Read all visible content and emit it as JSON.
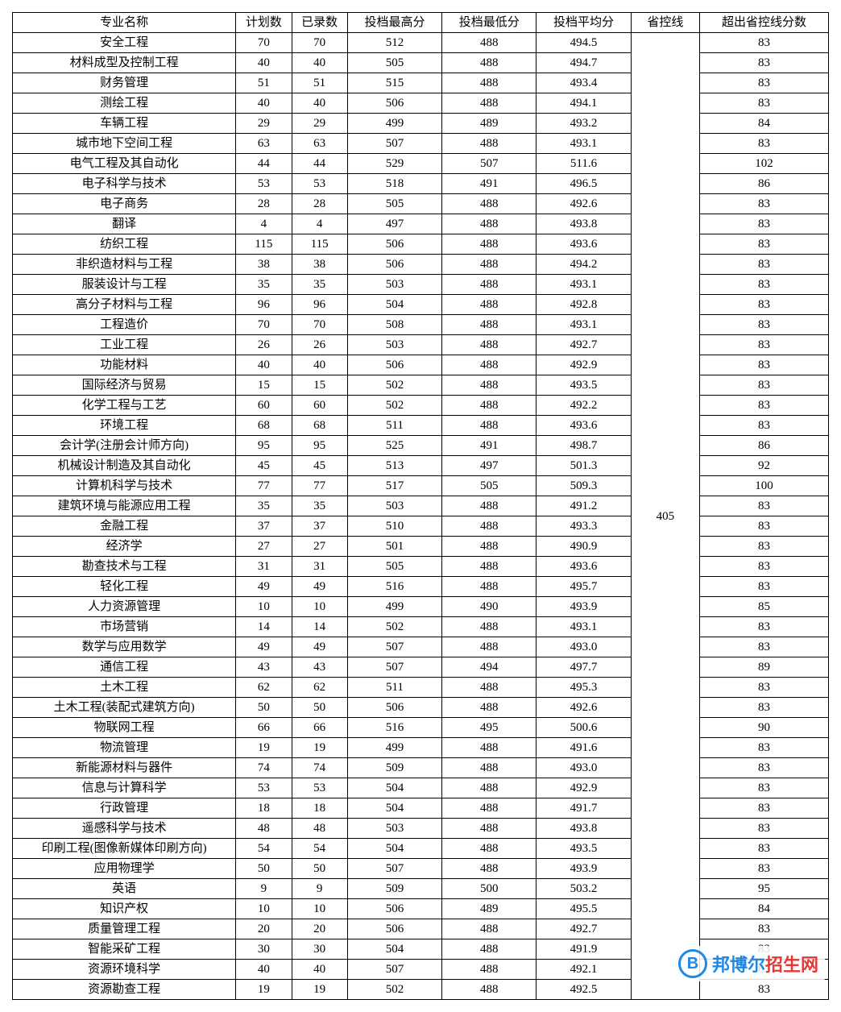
{
  "table": {
    "headers": {
      "name": "专业名称",
      "plan": "计划数",
      "admitted": "已录数",
      "max": "投档最高分",
      "min": "投档最低分",
      "avg": "投档平均分",
      "provline": "省控线",
      "exceed": "超出省控线分数"
    },
    "provline_value": "405",
    "rows": [
      {
        "name": "安全工程",
        "plan": "70",
        "admitted": "70",
        "max": "512",
        "min": "488",
        "avg": "494.5",
        "exceed": "83"
      },
      {
        "name": "材料成型及控制工程",
        "plan": "40",
        "admitted": "40",
        "max": "505",
        "min": "488",
        "avg": "494.7",
        "exceed": "83"
      },
      {
        "name": "财务管理",
        "plan": "51",
        "admitted": "51",
        "max": "515",
        "min": "488",
        "avg": "493.4",
        "exceed": "83"
      },
      {
        "name": "测绘工程",
        "plan": "40",
        "admitted": "40",
        "max": "506",
        "min": "488",
        "avg": "494.1",
        "exceed": "83"
      },
      {
        "name": "车辆工程",
        "plan": "29",
        "admitted": "29",
        "max": "499",
        "min": "489",
        "avg": "493.2",
        "exceed": "84"
      },
      {
        "name": "城市地下空间工程",
        "plan": "63",
        "admitted": "63",
        "max": "507",
        "min": "488",
        "avg": "493.1",
        "exceed": "83"
      },
      {
        "name": "电气工程及其自动化",
        "plan": "44",
        "admitted": "44",
        "max": "529",
        "min": "507",
        "avg": "511.6",
        "exceed": "102"
      },
      {
        "name": "电子科学与技术",
        "plan": "53",
        "admitted": "53",
        "max": "518",
        "min": "491",
        "avg": "496.5",
        "exceed": "86"
      },
      {
        "name": "电子商务",
        "plan": "28",
        "admitted": "28",
        "max": "505",
        "min": "488",
        "avg": "492.6",
        "exceed": "83"
      },
      {
        "name": "翻译",
        "plan": "4",
        "admitted": "4",
        "max": "497",
        "min": "488",
        "avg": "493.8",
        "exceed": "83"
      },
      {
        "name": "纺织工程",
        "plan": "115",
        "admitted": "115",
        "max": "506",
        "min": "488",
        "avg": "493.6",
        "exceed": "83"
      },
      {
        "name": "非织造材料与工程",
        "plan": "38",
        "admitted": "38",
        "max": "506",
        "min": "488",
        "avg": "494.2",
        "exceed": "83"
      },
      {
        "name": "服装设计与工程",
        "plan": "35",
        "admitted": "35",
        "max": "503",
        "min": "488",
        "avg": "493.1",
        "exceed": "83"
      },
      {
        "name": "高分子材料与工程",
        "plan": "96",
        "admitted": "96",
        "max": "504",
        "min": "488",
        "avg": "492.8",
        "exceed": "83"
      },
      {
        "name": "工程造价",
        "plan": "70",
        "admitted": "70",
        "max": "508",
        "min": "488",
        "avg": "493.1",
        "exceed": "83"
      },
      {
        "name": "工业工程",
        "plan": "26",
        "admitted": "26",
        "max": "503",
        "min": "488",
        "avg": "492.7",
        "exceed": "83"
      },
      {
        "name": "功能材料",
        "plan": "40",
        "admitted": "40",
        "max": "506",
        "min": "488",
        "avg": "492.9",
        "exceed": "83"
      },
      {
        "name": "国际经济与贸易",
        "plan": "15",
        "admitted": "15",
        "max": "502",
        "min": "488",
        "avg": "493.5",
        "exceed": "83"
      },
      {
        "name": "化学工程与工艺",
        "plan": "60",
        "admitted": "60",
        "max": "502",
        "min": "488",
        "avg": "492.2",
        "exceed": "83"
      },
      {
        "name": "环境工程",
        "plan": "68",
        "admitted": "68",
        "max": "511",
        "min": "488",
        "avg": "493.6",
        "exceed": "83"
      },
      {
        "name": "会计学(注册会计师方向)",
        "plan": "95",
        "admitted": "95",
        "max": "525",
        "min": "491",
        "avg": "498.7",
        "exceed": "86"
      },
      {
        "name": "机械设计制造及其自动化",
        "plan": "45",
        "admitted": "45",
        "max": "513",
        "min": "497",
        "avg": "501.3",
        "exceed": "92"
      },
      {
        "name": "计算机科学与技术",
        "plan": "77",
        "admitted": "77",
        "max": "517",
        "min": "505",
        "avg": "509.3",
        "exceed": "100"
      },
      {
        "name": "建筑环境与能源应用工程",
        "plan": "35",
        "admitted": "35",
        "max": "503",
        "min": "488",
        "avg": "491.2",
        "exceed": "83"
      },
      {
        "name": "金融工程",
        "plan": "37",
        "admitted": "37",
        "max": "510",
        "min": "488",
        "avg": "493.3",
        "exceed": "83"
      },
      {
        "name": "经济学",
        "plan": "27",
        "admitted": "27",
        "max": "501",
        "min": "488",
        "avg": "490.9",
        "exceed": "83"
      },
      {
        "name": "勘查技术与工程",
        "plan": "31",
        "admitted": "31",
        "max": "505",
        "min": "488",
        "avg": "493.6",
        "exceed": "83"
      },
      {
        "name": "轻化工程",
        "plan": "49",
        "admitted": "49",
        "max": "516",
        "min": "488",
        "avg": "495.7",
        "exceed": "83"
      },
      {
        "name": "人力资源管理",
        "plan": "10",
        "admitted": "10",
        "max": "499",
        "min": "490",
        "avg": "493.9",
        "exceed": "85"
      },
      {
        "name": "市场营销",
        "plan": "14",
        "admitted": "14",
        "max": "502",
        "min": "488",
        "avg": "493.1",
        "exceed": "83"
      },
      {
        "name": "数学与应用数学",
        "plan": "49",
        "admitted": "49",
        "max": "507",
        "min": "488",
        "avg": "493.0",
        "exceed": "83"
      },
      {
        "name": "通信工程",
        "plan": "43",
        "admitted": "43",
        "max": "507",
        "min": "494",
        "avg": "497.7",
        "exceed": "89"
      },
      {
        "name": "土木工程",
        "plan": "62",
        "admitted": "62",
        "max": "511",
        "min": "488",
        "avg": "495.3",
        "exceed": "83"
      },
      {
        "name": "土木工程(装配式建筑方向)",
        "plan": "50",
        "admitted": "50",
        "max": "506",
        "min": "488",
        "avg": "492.6",
        "exceed": "83"
      },
      {
        "name": "物联网工程",
        "plan": "66",
        "admitted": "66",
        "max": "516",
        "min": "495",
        "avg": "500.6",
        "exceed": "90"
      },
      {
        "name": "物流管理",
        "plan": "19",
        "admitted": "19",
        "max": "499",
        "min": "488",
        "avg": "491.6",
        "exceed": "83"
      },
      {
        "name": "新能源材料与器件",
        "plan": "74",
        "admitted": "74",
        "max": "509",
        "min": "488",
        "avg": "493.0",
        "exceed": "83"
      },
      {
        "name": "信息与计算科学",
        "plan": "53",
        "admitted": "53",
        "max": "504",
        "min": "488",
        "avg": "492.9",
        "exceed": "83"
      },
      {
        "name": "行政管理",
        "plan": "18",
        "admitted": "18",
        "max": "504",
        "min": "488",
        "avg": "491.7",
        "exceed": "83"
      },
      {
        "name": "遥感科学与技术",
        "plan": "48",
        "admitted": "48",
        "max": "503",
        "min": "488",
        "avg": "493.8",
        "exceed": "83"
      },
      {
        "name": "印刷工程(图像新媒体印刷方向)",
        "plan": "54",
        "admitted": "54",
        "max": "504",
        "min": "488",
        "avg": "493.5",
        "exceed": "83"
      },
      {
        "name": "应用物理学",
        "plan": "50",
        "admitted": "50",
        "max": "507",
        "min": "488",
        "avg": "493.9",
        "exceed": "83"
      },
      {
        "name": "英语",
        "plan": "9",
        "admitted": "9",
        "max": "509",
        "min": "500",
        "avg": "503.2",
        "exceed": "95"
      },
      {
        "name": "知识产权",
        "plan": "10",
        "admitted": "10",
        "max": "506",
        "min": "489",
        "avg": "495.5",
        "exceed": "84"
      },
      {
        "name": "质量管理工程",
        "plan": "20",
        "admitted": "20",
        "max": "506",
        "min": "488",
        "avg": "492.7",
        "exceed": "83"
      },
      {
        "name": "智能采矿工程",
        "plan": "30",
        "admitted": "30",
        "max": "504",
        "min": "488",
        "avg": "491.9",
        "exceed": "83"
      },
      {
        "name": "资源环境科学",
        "plan": "40",
        "admitted": "40",
        "max": "507",
        "min": "488",
        "avg": "492.1",
        "exceed": "83"
      },
      {
        "name": "资源勘查工程",
        "plan": "19",
        "admitted": "19",
        "max": "502",
        "min": "488",
        "avg": "492.5",
        "exceed": "83"
      }
    ]
  },
  "watermark": {
    "logo_letter": "B",
    "text_part1": "邦博尔",
    "text_part2": "招生网"
  },
  "style": {
    "border_color": "#000000",
    "background": "#ffffff",
    "font_size": 15,
    "logo_color": "#1e88e5",
    "red_color": "#e53935"
  }
}
